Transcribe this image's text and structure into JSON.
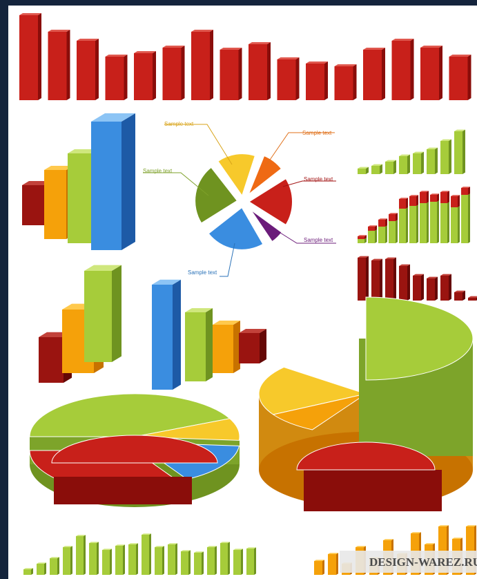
{
  "pie_labels": [
    "Sample text",
    "Sample text",
    "Sample text",
    "Sample text",
    "Sample text",
    "Sample text"
  ],
  "watermark": "DESIGN-WAREZ.RU"
}
